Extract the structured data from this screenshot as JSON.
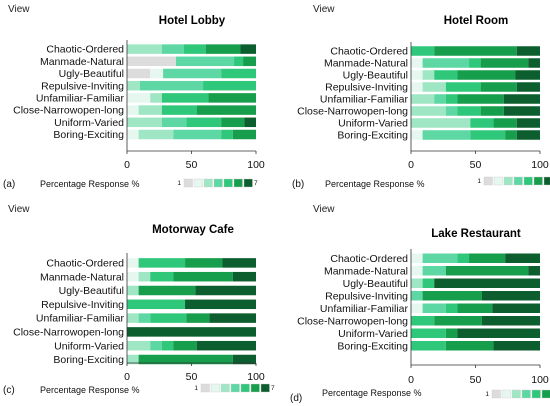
{
  "colors": {
    "levels": [
      "#dcdcdc",
      "#e6f7f0",
      "#9fe6c4",
      "#5dd7a3",
      "#2fc77a",
      "#179e4c",
      "#0d5e2e"
    ],
    "axis": "#333333"
  },
  "legend": {
    "min_label": "1",
    "max_label": "7"
  },
  "chart_data": [
    {
      "type": "bar",
      "stacked": true,
      "orientation": "horizontal",
      "panel_label": "(a)",
      "view_label": "View",
      "title": "Hotel Lobby",
      "xlabel": "Percentage Response %",
      "xlim": [
        0,
        100
      ],
      "xticks": [
        "0",
        "50",
        "100"
      ],
      "categories": [
        "Chaotic-Ordered",
        "Manmade-Natural",
        "Ugly-Beautiful",
        "Repulsive-Inviting",
        "Unfamiliar-Familiar",
        "Close-Narrowopen-long",
        "Uniform-Varied",
        "Boring-Exciting"
      ],
      "values": [
        [
          0,
          0,
          27,
          17,
          17,
          27,
          12
        ],
        [
          38,
          0,
          0,
          45,
          7,
          10,
          0
        ],
        [
          18,
          10,
          0,
          45,
          27,
          0,
          0
        ],
        [
          0,
          0,
          10,
          49,
          41,
          0,
          0
        ],
        [
          0,
          18,
          9,
          0,
          36,
          37,
          0
        ],
        [
          0,
          9,
          18,
          0,
          27,
          46,
          0
        ],
        [
          0,
          0,
          27,
          19,
          27,
          18,
          9
        ],
        [
          0,
          9,
          27,
          37,
          9,
          18,
          0
        ]
      ]
    },
    {
      "type": "bar",
      "stacked": true,
      "orientation": "horizontal",
      "panel_label": "(b)",
      "view_label": "View",
      "title": "Hotel Room",
      "xlabel": "Percentage Response %",
      "xlim": [
        0,
        100
      ],
      "xticks": [
        "0",
        "50",
        "100"
      ],
      "categories": [
        "Chaotic-Ordered",
        "Manmade-Natural",
        "Ugly-Beautiful",
        "Repulsive-Inviting",
        "Unfamiliar-Familiar",
        "Close-Narrowopen-long",
        "Uniform-Varied",
        "Boring-Exciting"
      ],
      "values": [
        [
          0,
          0,
          0,
          0,
          18,
          64,
          18
        ],
        [
          0,
          9,
          0,
          36,
          9,
          37,
          9
        ],
        [
          0,
          9,
          9,
          0,
          18,
          45,
          19
        ],
        [
          0,
          9,
          18,
          0,
          27,
          28,
          18
        ],
        [
          0,
          0,
          18,
          9,
          9,
          36,
          28
        ],
        [
          0,
          0,
          27,
          9,
          18,
          18,
          28
        ],
        [
          0,
          0,
          46,
          0,
          18,
          18,
          18
        ],
        [
          0,
          9,
          0,
          37,
          27,
          9,
          18
        ]
      ]
    },
    {
      "type": "bar",
      "stacked": true,
      "orientation": "horizontal",
      "panel_label": "(c)",
      "view_label": "View",
      "title": "Motorway Cafe",
      "xlabel": "Percentage Response %",
      "xlim": [
        0,
        100
      ],
      "xticks": [
        "0",
        "50",
        "100"
      ],
      "categories": [
        "Chaotic-Ordered",
        "Manmade-Natural",
        "Ugly-Beautiful",
        "Repulsive-Inviting",
        "Unfamiliar-Familiar",
        "Close-Narrowopen-long",
        "Uniform-Varied",
        "Boring-Exciting"
      ],
      "values": [
        [
          0,
          9,
          0,
          0,
          36,
          29,
          26
        ],
        [
          0,
          9,
          9,
          0,
          18,
          46,
          18
        ],
        [
          0,
          0,
          9,
          0,
          0,
          44,
          47
        ],
        [
          0,
          0,
          0,
          0,
          45,
          0,
          55
        ],
        [
          0,
          0,
          9,
          9,
          28,
          18,
          36
        ],
        [
          0,
          0,
          0,
          0,
          0,
          0,
          100
        ],
        [
          0,
          0,
          18,
          9,
          9,
          18,
          46
        ],
        [
          0,
          0,
          9,
          0,
          0,
          73,
          18
        ]
      ]
    },
    {
      "type": "bar",
      "stacked": true,
      "orientation": "horizontal",
      "panel_label": "(d)",
      "view_label": "View",
      "title": "Lake Restaurant",
      "xlabel": "Percentage Response %",
      "xlim": [
        0,
        100
      ],
      "xticks": [
        "0",
        "50",
        "100"
      ],
      "categories": [
        "Chaotic-Ordered",
        "Manmade-Natural",
        "Ugly-Beautiful",
        "Repulsive-Inviting",
        "Unfamiliar-Familiar",
        "Close-Narrowopen-long",
        "Uniform-Varied",
        "Boring-Exciting"
      ],
      "values": [
        [
          0,
          9,
          0,
          27,
          9,
          28,
          27
        ],
        [
          0,
          9,
          0,
          18,
          0,
          64,
          9
        ],
        [
          0,
          0,
          9,
          0,
          9,
          0,
          82
        ],
        [
          0,
          0,
          0,
          9,
          0,
          46,
          45
        ],
        [
          0,
          9,
          0,
          18,
          9,
          27,
          37
        ],
        [
          0,
          0,
          0,
          0,
          18,
          37,
          45
        ],
        [
          0,
          0,
          0,
          0,
          27,
          9,
          64
        ],
        [
          0,
          0,
          0,
          0,
          27,
          37,
          36
        ]
      ]
    }
  ]
}
